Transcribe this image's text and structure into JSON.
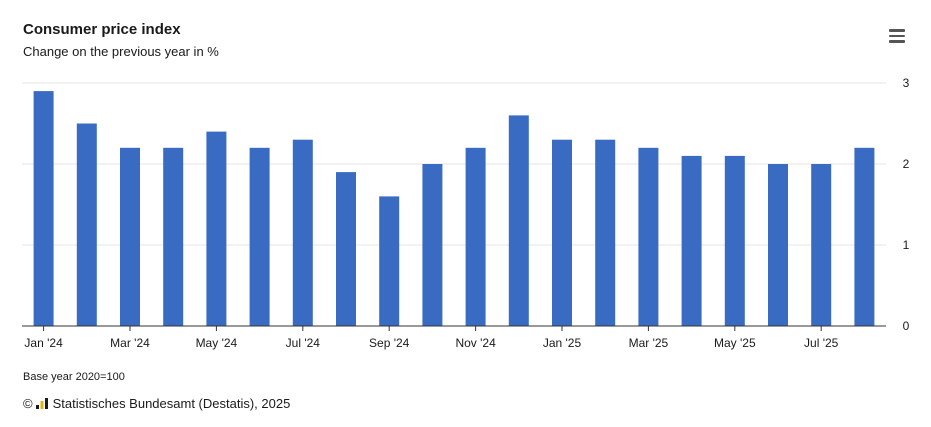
{
  "header": {
    "title": "Consumer price index",
    "subtitle": "Change on the previous year in %"
  },
  "menu": {
    "icon": "hamburger-menu-icon"
  },
  "footer": {
    "note": "Base year 2020=100",
    "copyright_symbol": "©",
    "credit": "Statistisches Bundesamt (Destatis), 2025",
    "logo_icon": "destatis-logo-icon"
  },
  "colors": {
    "bar": "#3a6bc2",
    "grid": "#e6e6e6",
    "axis": "#333333",
    "text": "#1a1a1a"
  },
  "chart_data": {
    "type": "bar",
    "title": "Consumer price index",
    "subtitle": "Change on the previous year in %",
    "xlabel": "",
    "ylabel": "",
    "categories": [
      "Jan '24",
      "Feb '24",
      "Mar '24",
      "Apr '24",
      "May '24",
      "Jun '24",
      "Jul '24",
      "Aug '24",
      "Sep '24",
      "Oct '24",
      "Nov '24",
      "Dec '24",
      "Jan '25",
      "Feb '25",
      "Mar '25",
      "Apr '25",
      "May '25",
      "Jun '25",
      "Jul '25",
      "Aug '25"
    ],
    "x_tick_labels": [
      "Jan '24",
      "Mar '24",
      "May '24",
      "Jul '24",
      "Sep '24",
      "Nov '24",
      "Jan '25",
      "Mar '25",
      "May '25",
      "Jul '25"
    ],
    "values": [
      2.9,
      2.5,
      2.2,
      2.2,
      2.4,
      2.2,
      2.3,
      1.9,
      1.6,
      2.0,
      2.2,
      2.6,
      2.3,
      2.3,
      2.2,
      2.1,
      2.1,
      2.0,
      2.0,
      2.2
    ],
    "ylim": [
      0,
      3
    ],
    "yticks": [
      0,
      1,
      2,
      3
    ],
    "y_axis_side": "right",
    "grid": true,
    "legend": "none"
  }
}
